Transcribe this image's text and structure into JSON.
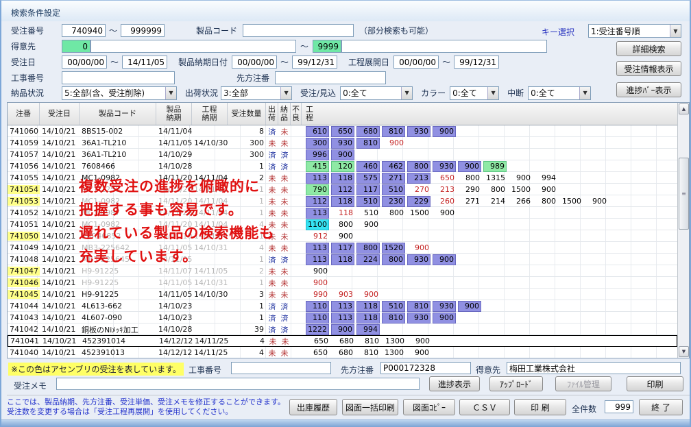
{
  "window": {
    "title": "検索条件設定"
  },
  "filters": {
    "order_no_label": "受注番号",
    "order_no_from": "740940",
    "order_no_to": "999999",
    "tilde": "～",
    "product_code_label": "製品コード",
    "product_code_value": "",
    "partial_note": "（部分検索も可能）",
    "key_select_label": "キー選択",
    "key_select_value": "1:受注番号順",
    "customer_label": "得意先",
    "customer_from": "0",
    "customer_from_name": "",
    "customer_to": "9999",
    "customer_to_name": "",
    "order_date_label": "受注日",
    "order_date_from": "00/00/00",
    "order_date_to": "14/11/05",
    "delivery_date_label": "製品納期日付",
    "delivery_from": "00/00/00",
    "delivery_to": "99/12/31",
    "process_date_label": "工程展開日",
    "process_from": "00/00/00",
    "process_to": "99/12/31",
    "koji_label": "工事番号",
    "koji_value": "",
    "senpo_label": "先方注番",
    "senpo_value": "",
    "nohin_label": "納品状況",
    "nohin_value": "5:全部(含、受注削除)",
    "shukka_label": "出荷状況",
    "shukka_value": "3:全部",
    "mikomi_label": "受注/見込",
    "mikomi_value": "0:全て",
    "color_label": "カラー",
    "color_value": "0:全て",
    "chudan_label": "中断",
    "chudan_value": "0:全て",
    "dropdown_arrow": "▼"
  },
  "actions": {
    "detail_search": "詳細検索",
    "order_info": "受注情報表示",
    "progress_bar_view": "進捗ﾊﾞｰ表示"
  },
  "table": {
    "columns": [
      {
        "lines": [
          "注番"
        ]
      },
      {
        "lines": [
          "受注日"
        ]
      },
      {
        "lines": [
          "製品コード"
        ]
      },
      {
        "lines": [
          "製品",
          "納期"
        ]
      },
      {
        "lines": [
          "工程",
          "納期"
        ]
      },
      {
        "lines": [
          "受注数量"
        ]
      },
      {
        "lines": [
          "出",
          "荷"
        ]
      },
      {
        "lines": [
          "納",
          "品"
        ]
      },
      {
        "lines": [
          "不",
          "良"
        ]
      },
      {
        "lines": [
          "工",
          "程"
        ]
      }
    ],
    "status_done": "済",
    "status_not": "未",
    "rows": [
      {
        "no": "741060",
        "date": "14/10/21",
        "code": "8BS15-002",
        "d1": "14/11/04",
        "d2": "",
        "qty": "8",
        "ship": "済",
        "del": "未",
        "hl": false,
        "grey": false,
        "sel": false,
        "bars": [
          {
            "t": "610",
            "s": "b"
          },
          {
            "t": "650",
            "s": "b"
          },
          {
            "t": "680",
            "s": "b"
          },
          {
            "t": "810",
            "s": "b"
          },
          {
            "t": "930",
            "s": "b"
          },
          {
            "t": "900",
            "s": "b"
          }
        ]
      },
      {
        "no": "741059",
        "date": "14/10/21",
        "code": "36A1-TL210",
        "d1": "14/11/05",
        "d2": "14/10/30",
        "qty": "300",
        "ship": "未",
        "del": "未",
        "hl": false,
        "grey": false,
        "sel": false,
        "bars": [
          {
            "t": "300",
            "s": "b"
          },
          {
            "t": "930",
            "s": "b"
          },
          {
            "t": "810",
            "s": "b"
          },
          {
            "t": "900",
            "s": "r"
          }
        ]
      },
      {
        "no": "741057",
        "date": "14/10/21",
        "code": "36A1-TL210",
        "d1": "14/10/29",
        "d2": "",
        "qty": "300",
        "ship": "済",
        "del": "済",
        "hl": false,
        "grey": false,
        "sel": false,
        "bars": [
          {
            "t": "996",
            "s": "b"
          },
          {
            "t": "900",
            "s": "b"
          }
        ]
      },
      {
        "no": "741056",
        "date": "14/10/21",
        "code": "7608466",
        "d1": "14/10/28",
        "d2": "",
        "qty": "1",
        "ship": "済",
        "del": "済",
        "hl": false,
        "grey": false,
        "sel": false,
        "bars": [
          {
            "t": "415",
            "s": "g"
          },
          {
            "t": "120",
            "s": "g"
          },
          {
            "t": "460",
            "s": "b"
          },
          {
            "t": "462",
            "s": "b"
          },
          {
            "t": "800",
            "s": "b"
          },
          {
            "t": "930",
            "s": "b"
          },
          {
            "t": "900",
            "s": "b"
          },
          {
            "t": "989",
            "s": "g"
          }
        ]
      },
      {
        "no": "741055",
        "date": "14/10/21",
        "code": "MC1-0982",
        "d1": "14/11/20",
        "d2": "14/11/04",
        "qty": "2",
        "ship": "未",
        "del": "未",
        "hl": false,
        "grey": false,
        "sel": false,
        "bars": [
          {
            "t": "113",
            "s": "b"
          },
          {
            "t": "118",
            "s": "b"
          },
          {
            "t": "575",
            "s": "b"
          },
          {
            "t": "271",
            "s": "b"
          },
          {
            "t": "213",
            "s": "b"
          },
          {
            "t": "650",
            "s": "r"
          },
          {
            "t": "800",
            "s": "p"
          },
          {
            "t": "1315",
            "s": "p"
          },
          {
            "t": "900",
            "s": "p"
          },
          {
            "t": "994",
            "s": "p"
          }
        ]
      },
      {
        "no": "741054",
        "date": "14/10/21",
        "code": "MC1-1258",
        "d1": "14/11/20",
        "d2": "14/11/04",
        "qty": "1",
        "ship": "未",
        "del": "未",
        "hl": true,
        "grey": true,
        "sel": false,
        "bars": [
          {
            "t": "790",
            "s": "g"
          },
          {
            "t": "112",
            "s": "b"
          },
          {
            "t": "117",
            "s": "b"
          },
          {
            "t": "510",
            "s": "b"
          },
          {
            "t": "270",
            "s": "r"
          },
          {
            "t": "213",
            "s": "r"
          },
          {
            "t": "290",
            "s": "p"
          },
          {
            "t": "800",
            "s": "p"
          },
          {
            "t": "1500",
            "s": "p"
          },
          {
            "t": "900",
            "s": "p"
          }
        ]
      },
      {
        "no": "741053",
        "date": "14/10/21",
        "code": "MC1-0982",
        "d1": "14/11/20",
        "d2": "14/11/04",
        "qty": "1",
        "ship": "未",
        "del": "未",
        "hl": true,
        "grey": true,
        "sel": false,
        "bars": [
          {
            "t": "112",
            "s": "b"
          },
          {
            "t": "118",
            "s": "b"
          },
          {
            "t": "510",
            "s": "b"
          },
          {
            "t": "230",
            "s": "b"
          },
          {
            "t": "229",
            "s": "b"
          },
          {
            "t": "260",
            "s": "r"
          },
          {
            "t": "271",
            "s": "p"
          },
          {
            "t": "214",
            "s": "p"
          },
          {
            "t": "266",
            "s": "p"
          },
          {
            "t": "800",
            "s": "p"
          },
          {
            "t": "1500",
            "s": "p"
          },
          {
            "t": "900",
            "s": "p"
          }
        ]
      },
      {
        "no": "741052",
        "date": "14/10/21",
        "code": "MC1-0987",
        "d1": "14/11/20",
        "d2": "14/11/04",
        "qty": "1",
        "ship": "未",
        "del": "未",
        "hl": false,
        "grey": true,
        "sel": false,
        "bars": [
          {
            "t": "113",
            "s": "b"
          },
          {
            "t": "118",
            "s": "r"
          },
          {
            "t": "510",
            "s": "p"
          },
          {
            "t": "800",
            "s": "p"
          },
          {
            "t": "1500",
            "s": "p"
          },
          {
            "t": "900",
            "s": "p"
          }
        ]
      },
      {
        "no": "741051",
        "date": "14/10/21",
        "code": "MC1-0982",
        "d1": "14/11/20",
        "d2": "14/11/04",
        "qty": "4",
        "ship": "未",
        "del": "未",
        "hl": false,
        "grey": true,
        "sel": false,
        "bars": [
          {
            "t": "1100",
            "s": "c"
          },
          {
            "t": "800",
            "s": "p"
          },
          {
            "t": "900",
            "s": "p"
          }
        ]
      },
      {
        "no": "741050",
        "date": "14/10/21",
        "code": "KBR40852",
        "d1": "14/11/10",
        "d2": "14/11/04",
        "qty": "1",
        "ship": "未",
        "del": "未",
        "hl": true,
        "grey": true,
        "sel": false,
        "bars": [
          {
            "t": "912",
            "s": "r"
          },
          {
            "t": "900",
            "s": "p"
          }
        ]
      },
      {
        "no": "741049",
        "date": "14/10/21",
        "code": "MB3-225642",
        "d1": "14/11/05",
        "d2": "14/10/31",
        "qty": "4",
        "ship": "未",
        "del": "未",
        "hl": false,
        "grey": true,
        "sel": false,
        "bars": [
          {
            "t": "113",
            "s": "b"
          },
          {
            "t": "117",
            "s": "b"
          },
          {
            "t": "800",
            "s": "b"
          },
          {
            "t": "1520",
            "s": "b"
          },
          {
            "t": "900",
            "s": "r"
          }
        ]
      },
      {
        "no": "741048",
        "date": "14/10/21",
        "code": "MB3-225645",
        "d1": "14/11/05",
        "d2": "",
        "qty": "1",
        "ship": "済",
        "del": "済",
        "hl": false,
        "grey": true,
        "sel": false,
        "bars": [
          {
            "t": "113",
            "s": "b"
          },
          {
            "t": "118",
            "s": "b"
          },
          {
            "t": "224",
            "s": "b"
          },
          {
            "t": "800",
            "s": "b"
          },
          {
            "t": "930",
            "s": "b"
          },
          {
            "t": "900",
            "s": "b"
          }
        ]
      },
      {
        "no": "741047",
        "date": "14/10/21",
        "code": "H9-91225",
        "d1": "14/11/07",
        "d2": "14/11/05",
        "qty": "2",
        "ship": "未",
        "del": "未",
        "hl": true,
        "grey": true,
        "sel": false,
        "bars": [
          {
            "t": "900",
            "s": "p"
          }
        ]
      },
      {
        "no": "741046",
        "date": "14/10/21",
        "code": "H9-91225",
        "d1": "14/11/05",
        "d2": "14/10/31",
        "qty": "1",
        "ship": "未",
        "del": "未",
        "hl": true,
        "grey": true,
        "sel": false,
        "bars": [
          {
            "t": "900",
            "s": "r"
          }
        ]
      },
      {
        "no": "741045",
        "date": "14/10/21",
        "code": "H9-91225",
        "d1": "14/11/05",
        "d2": "14/10/30",
        "qty": "3",
        "ship": "未",
        "del": "未",
        "hl": true,
        "grey": false,
        "sel": false,
        "bars": [
          {
            "t": "990",
            "s": "r"
          },
          {
            "t": "903",
            "s": "r"
          },
          {
            "t": "900",
            "s": "r"
          }
        ]
      },
      {
        "no": "741044",
        "date": "14/10/21",
        "code": "4L613-662",
        "d1": "14/10/23",
        "d2": "",
        "qty": "1",
        "ship": "済",
        "del": "済",
        "hl": false,
        "grey": false,
        "sel": false,
        "bars": [
          {
            "t": "110",
            "s": "b"
          },
          {
            "t": "113",
            "s": "b"
          },
          {
            "t": "118",
            "s": "b"
          },
          {
            "t": "510",
            "s": "b"
          },
          {
            "t": "810",
            "s": "b"
          },
          {
            "t": "930",
            "s": "b"
          },
          {
            "t": "900",
            "s": "b"
          }
        ]
      },
      {
        "no": "741043",
        "date": "14/10/21",
        "code": "4L607-090",
        "d1": "14/10/23",
        "d2": "",
        "qty": "1",
        "ship": "済",
        "del": "済",
        "hl": false,
        "grey": false,
        "sel": false,
        "bars": [
          {
            "t": "110",
            "s": "b"
          },
          {
            "t": "113",
            "s": "b"
          },
          {
            "t": "118",
            "s": "b"
          },
          {
            "t": "810",
            "s": "b"
          },
          {
            "t": "930",
            "s": "b"
          },
          {
            "t": "900",
            "s": "b"
          }
        ]
      },
      {
        "no": "741042",
        "date": "14/10/21",
        "code": "銅板のNiﾒｯｷ加工",
        "d1": "14/10/28",
        "d2": "",
        "qty": "39",
        "ship": "済",
        "del": "済",
        "hl": false,
        "grey": false,
        "sel": false,
        "bars": [
          {
            "t": "1222",
            "s": "b"
          },
          {
            "t": "900",
            "s": "b"
          },
          {
            "t": "994",
            "s": "b"
          }
        ]
      },
      {
        "no": "741041",
        "date": "14/10/21",
        "code": "452391014",
        "d1": "14/12/12",
        "d2": "14/11/25",
        "qty": "4",
        "ship": "未",
        "del": "未",
        "hl": false,
        "grey": false,
        "sel": true,
        "bars": [
          {
            "t": "650",
            "s": "p"
          },
          {
            "t": "680",
            "s": "p"
          },
          {
            "t": "810",
            "s": "p"
          },
          {
            "t": "1300",
            "s": "p"
          },
          {
            "t": "900",
            "s": "p"
          }
        ]
      },
      {
        "no": "741040",
        "date": "14/10/21",
        "code": "452391013",
        "d1": "14/12/12",
        "d2": "14/11/25",
        "qty": "4",
        "ship": "未",
        "del": "未",
        "hl": false,
        "grey": false,
        "sel": false,
        "bars": [
          {
            "t": "650",
            "s": "p"
          },
          {
            "t": "680",
            "s": "p"
          },
          {
            "t": "810",
            "s": "p"
          },
          {
            "t": "1300",
            "s": "p"
          },
          {
            "t": "900",
            "s": "p"
          }
        ]
      }
    ]
  },
  "overlay": {
    "lines": [
      "複数受注の進捗を俯瞰的に",
      "把握する事も容易です。",
      "遅れている製品の検索機能も",
      "充実しています。"
    ]
  },
  "scrollbar": {
    "up": "▲",
    "down": "▼",
    "grip": "≡"
  },
  "footer": {
    "assembly_note": "※この色はアセンブリの受注を表しています。",
    "koji_label": "工事番号",
    "koji_value": "",
    "senpo_label": "先方注番",
    "senpo_value": "P000172328",
    "customer_label": "得意先",
    "customer_value": "梅田工業株式会社",
    "memo_label": "受注メモ",
    "memo_value": "",
    "progress_btn": "進捗表示",
    "upload_btn": "ｱｯﾌﾟﾛｰﾄﾞ",
    "file_btn": "ﾌｧｲﾙ管理",
    "print_btn": "印刷",
    "hint_line1": "ここでは、製品納期、先方注番、受注単価、受注メモを修正することができます。",
    "hint_line2": "受注数を変更する場合は「受注工程再展開」を使用してください。",
    "history_btn": "出庫履歴",
    "batch_print_btn": "図面一括印刷",
    "copy_btn": "図面ｺﾋﾟｰ",
    "csv_btn": "ＣＳＶ",
    "print2_btn": "印 刷",
    "total_label": "全件数",
    "total_value": "999",
    "exit_btn": "終 了"
  },
  "colors": {
    "bar_blue": "#9090e2",
    "bar_green": "#8fe9a5",
    "bar_cyan": "#35e2f2",
    "late_red": "#c42020",
    "highlight_yellow": "#ffff8a",
    "done_navy": "#1c2f9e",
    "not_done_red": "#b33030"
  }
}
